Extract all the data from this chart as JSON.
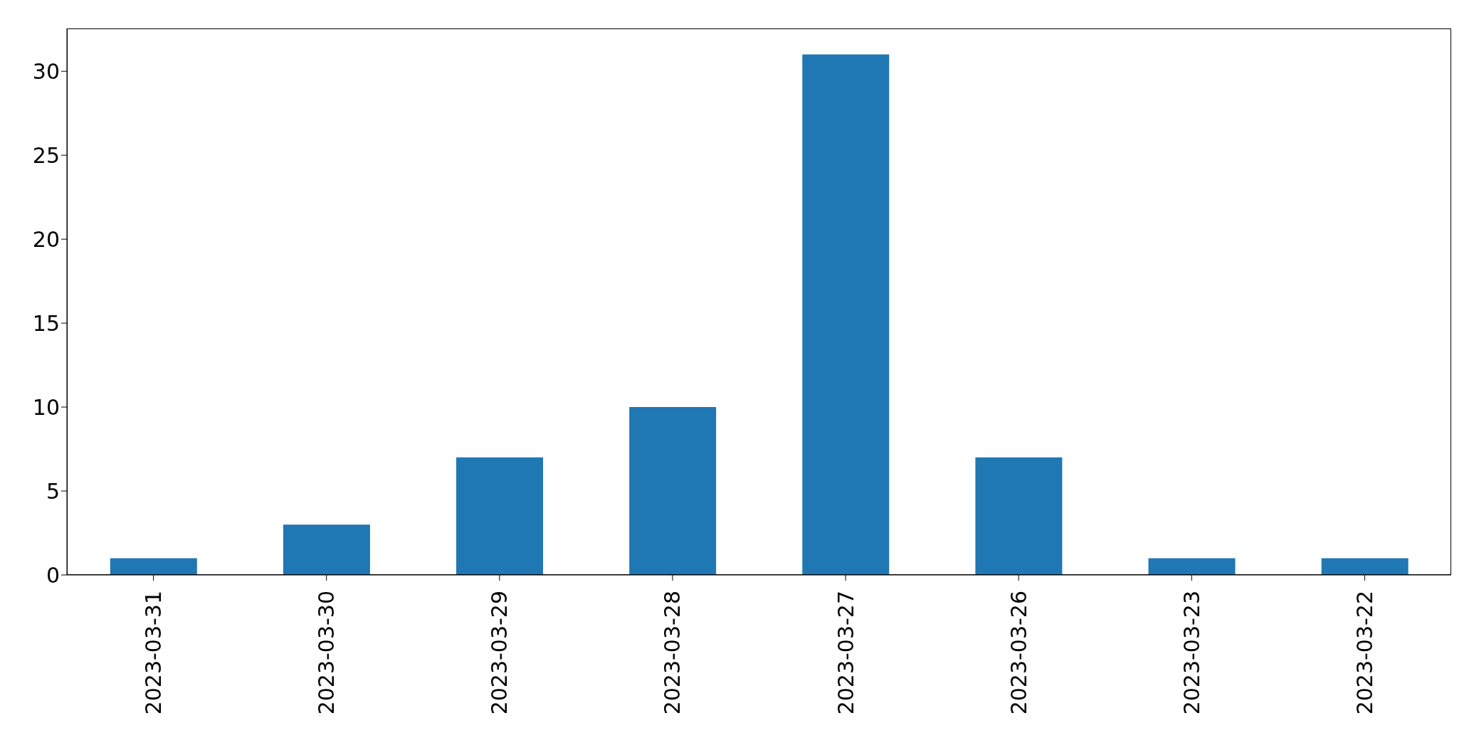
{
  "chart_data": {
    "type": "bar",
    "categories": [
      "2023-03-31",
      "2023-03-30",
      "2023-03-29",
      "2023-03-28",
      "2023-03-27",
      "2023-03-26",
      "2023-03-23",
      "2023-03-22"
    ],
    "values": [
      1,
      3,
      7,
      10,
      31,
      7,
      1,
      1
    ],
    "color": "#1f77b4",
    "ylim": [
      0,
      32.55
    ],
    "yticks": [
      0,
      5,
      10,
      15,
      20,
      25,
      30
    ],
    "grid": false
  }
}
